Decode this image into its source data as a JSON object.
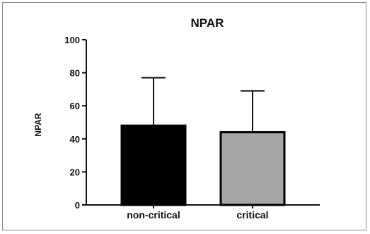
{
  "chart_data": {
    "type": "bar",
    "title": "NPAR",
    "xlabel": "",
    "ylabel": "NPAR",
    "ylim": [
      0,
      100
    ],
    "yticks": [
      0,
      20,
      40,
      60,
      80,
      100
    ],
    "categories": [
      "non-critical",
      "critical"
    ],
    "values": [
      48,
      44
    ],
    "error_upper": [
      77,
      69
    ],
    "colors": [
      "#000000",
      "#a6a6a6"
    ],
    "grid": false,
    "legend": "none"
  }
}
